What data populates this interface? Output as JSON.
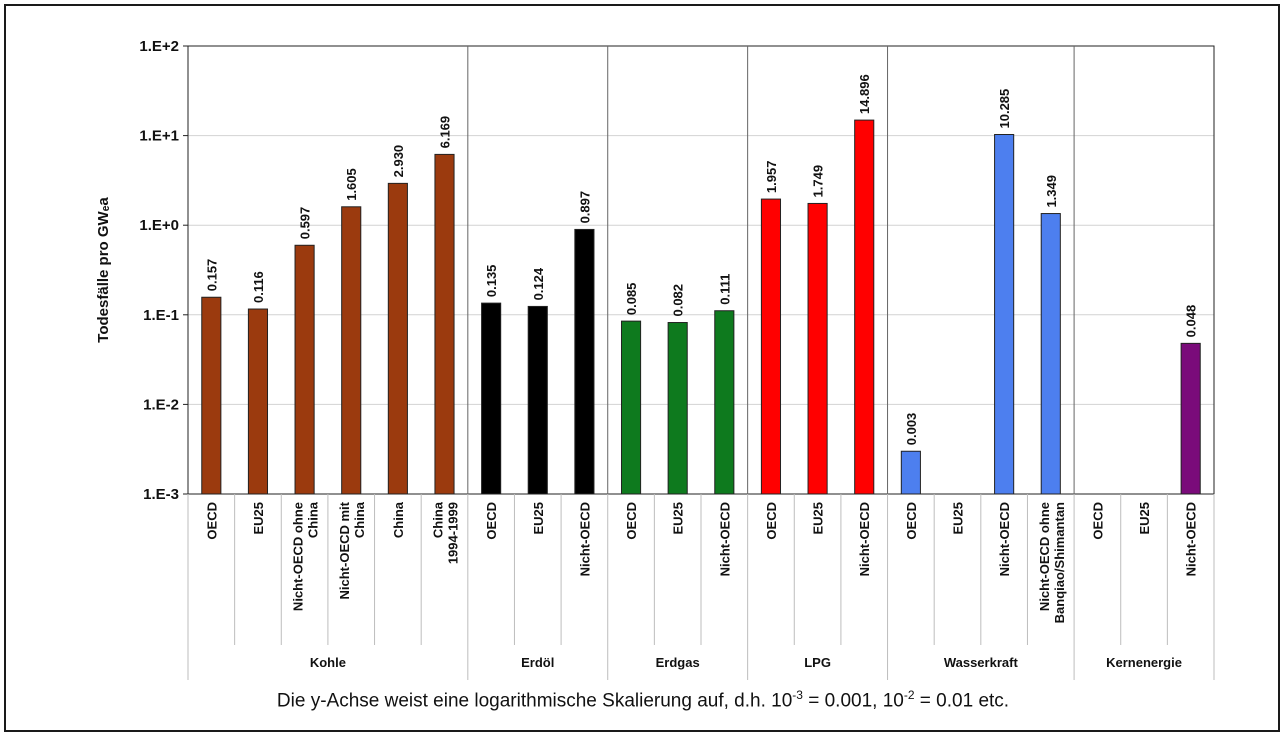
{
  "chart_data": {
    "type": "bar",
    "yscale": "log",
    "ylim": [
      0.001,
      100
    ],
    "ylabel": "Todesfälle pro GWₑa",
    "ytick_labels": [
      "1.E-3",
      "1.E-2",
      "1.E-1",
      "1.E+0",
      "1.E+1",
      "1.E+2"
    ],
    "grid": "horizontal",
    "groups": [
      {
        "name": "Kohle",
        "color": "#9B3A0E",
        "bars": [
          {
            "category": "OECD",
            "value": 0.157,
            "label": "0.157"
          },
          {
            "category": "EU25",
            "value": 0.116,
            "label": "0.116"
          },
          {
            "category": "Nicht-OECD ohne China",
            "value": 0.597,
            "label": "0.597"
          },
          {
            "category": "Nicht-OECD mit China",
            "value": 1.605,
            "label": "1.605"
          },
          {
            "category": "China",
            "value": 2.93,
            "label": "2.930"
          },
          {
            "category": "China 1994-1999",
            "value": 6.169,
            "label": "6.169"
          }
        ]
      },
      {
        "name": "Erdöl",
        "color": "#000000",
        "bars": [
          {
            "category": "OECD",
            "value": 0.135,
            "label": "0.135"
          },
          {
            "category": "EU25",
            "value": 0.124,
            "label": "0.124"
          },
          {
            "category": "Nicht-OECD",
            "value": 0.897,
            "label": "0.897"
          }
        ]
      },
      {
        "name": "Erdgas",
        "color": "#0E7A1E",
        "bars": [
          {
            "category": "OECD",
            "value": 0.085,
            "label": "0.085"
          },
          {
            "category": "EU25",
            "value": 0.082,
            "label": "0.082"
          },
          {
            "category": "Nicht-OECD",
            "value": 0.111,
            "label": "0.111"
          }
        ]
      },
      {
        "name": "LPG",
        "color": "#FF0000",
        "bars": [
          {
            "category": "OECD",
            "value": 1.957,
            "label": "1.957"
          },
          {
            "category": "EU25",
            "value": 1.749,
            "label": "1.749"
          },
          {
            "category": "Nicht-OECD",
            "value": 14.896,
            "label": "14.896"
          }
        ]
      },
      {
        "name": "Wasserkraft",
        "color": "#4D7FEF",
        "bars": [
          {
            "category": "OECD",
            "value": 0.003,
            "label": "0.003"
          },
          {
            "category": "EU25",
            "value": null,
            "label": ""
          },
          {
            "category": "Nicht-OECD",
            "value": 10.285,
            "label": "10.285"
          },
          {
            "category": "Nicht-OECD ohne Banqiao/Shimantan",
            "value": 1.349,
            "label": "1.349"
          }
        ]
      },
      {
        "name": "Kernenergie",
        "color": "#7A0B7A",
        "bars": [
          {
            "category": "OECD",
            "value": null,
            "label": ""
          },
          {
            "category": "EU25",
            "value": null,
            "label": ""
          },
          {
            "category": "Nicht-OECD",
            "value": 0.048,
            "label": "0.048"
          }
        ]
      }
    ]
  },
  "caption": {
    "before": "Die y-Achse weist eine logarithmische Skalierung auf, d.h. 10",
    "exp1": "-3",
    "middle": " = 0.001, 10",
    "exp2": "-2",
    "after": " = 0.01 etc."
  }
}
